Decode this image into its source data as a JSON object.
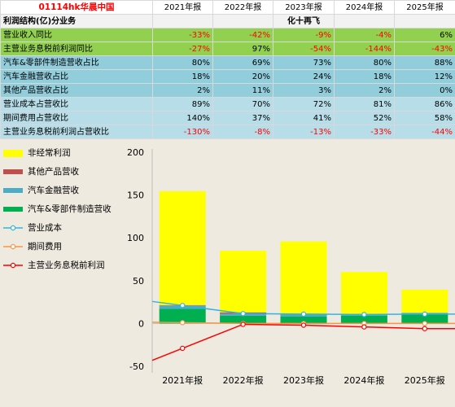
{
  "table": {
    "title": "01114hk华晨中国",
    "years": [
      "2021年报",
      "2022年报",
      "2023年报",
      "2024年报",
      "2025年报"
    ],
    "section_label": "利润结构(亿)分业务",
    "unit_label": "化十再飞",
    "rows": [
      {
        "label": "营业收入同比",
        "group": "green",
        "values": [
          "-33%",
          "-42%",
          "-9%",
          "-4%",
          "6%"
        ]
      },
      {
        "label": "主营业务息税前利润同比",
        "group": "green",
        "values": [
          "-27%",
          "97%",
          "-54%",
          "-144%",
          "-43%"
        ]
      },
      {
        "label": "汽车&零部件制造营收占比",
        "group": "teal",
        "values": [
          "80%",
          "69%",
          "73%",
          "80%",
          "88%"
        ]
      },
      {
        "label": "汽车金融营收占比",
        "group": "teal",
        "values": [
          "18%",
          "20%",
          "24%",
          "18%",
          "12%"
        ]
      },
      {
        "label": "其他产品营收占比",
        "group": "teal",
        "values": [
          "2%",
          "11%",
          "3%",
          "2%",
          "0%"
        ]
      },
      {
        "label": "营业成本占营收比",
        "group": "lblue",
        "values": [
          "89%",
          "70%",
          "72%",
          "81%",
          "86%"
        ]
      },
      {
        "label": "期间费用占营收比",
        "group": "lblue",
        "values": [
          "140%",
          "37%",
          "41%",
          "52%",
          "58%"
        ]
      },
      {
        "label": "主营业务息税前利润占营收比",
        "group": "lblue",
        "values": [
          "-130%",
          "-8%",
          "-13%",
          "-33%",
          "-44%"
        ]
      }
    ]
  },
  "chart_data": {
    "type": "bar",
    "categories": [
      "2021年报",
      "2022年报",
      "2023年报",
      "2024年报",
      "2025年报"
    ],
    "ylim": [
      -50,
      200
    ],
    "yticks": [
      -50,
      0,
      50,
      100,
      150,
      200
    ],
    "grid": false,
    "legend_position": "left",
    "bar_series": [
      {
        "name": "汽车&零部件制造营收",
        "color": "#00b050",
        "values": [
          17,
          9,
          8,
          9,
          11
        ]
      },
      {
        "name": "汽车金融营收",
        "color": "#4bacc6",
        "values": [
          4,
          2.5,
          2.5,
          2,
          1.5
        ]
      },
      {
        "name": "其他产品营收",
        "color": "#c0504d",
        "values": [
          0.5,
          1.5,
          0.3,
          0.2,
          0
        ]
      },
      {
        "name": "非经常利润",
        "color": "#ffff00",
        "values": [
          133,
          72,
          85,
          49,
          27
        ]
      }
    ],
    "line_series": [
      {
        "name": "营业成本",
        "color": "#31b4e4",
        "marker": "circle",
        "values": [
          21,
          11.5,
          11,
          10.5,
          11
        ]
      },
      {
        "name": "期间费用",
        "color": "#f79646",
        "marker": "circle",
        "values": [
          1,
          0,
          0,
          0,
          0
        ]
      },
      {
        "name": "主营业务息税前利润",
        "color": "#ff0000",
        "marker": "circle",
        "values": [
          -29,
          -1,
          -2,
          -4,
          -6
        ]
      }
    ],
    "legend_order": [
      "非经常利润",
      "其他产品营收",
      "汽车金融营收",
      "汽车&零部件制造营收",
      "营业成本",
      "期间费用",
      "主营业务息税前利润"
    ]
  }
}
